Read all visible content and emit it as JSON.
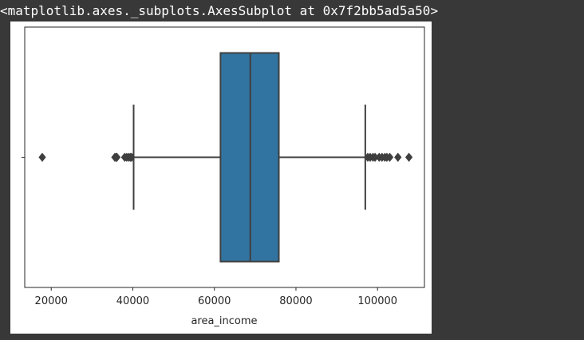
{
  "output": {
    "repr_text": "<matplotlib.axes._subplots.AxesSubplot at 0x7f2bb5ad5a50>"
  },
  "chart_data": {
    "type": "boxplot",
    "orientation": "horizontal",
    "title": "",
    "xlabel": "area_income",
    "ylabel": "",
    "xlim": [
      13500,
      111500
    ],
    "xticks": [
      20000,
      40000,
      60000,
      80000,
      100000
    ],
    "xtick_labels": [
      "20000",
      "40000",
      "60000",
      "80000",
      "100000"
    ],
    "grid": false,
    "box": {
      "q1": 61500,
      "median": 68800,
      "q3": 75800,
      "whisker_low": 40200,
      "whisker_high": 97000,
      "color": "#3274a1",
      "edge_color": "#3f3f3f"
    },
    "outliers": [
      17800,
      35600,
      35900,
      36100,
      38000,
      38500,
      39000,
      39400,
      39700,
      97600,
      98200,
      98900,
      99400,
      100400,
      101100,
      101800,
      102300,
      103000,
      105000,
      107700
    ]
  }
}
